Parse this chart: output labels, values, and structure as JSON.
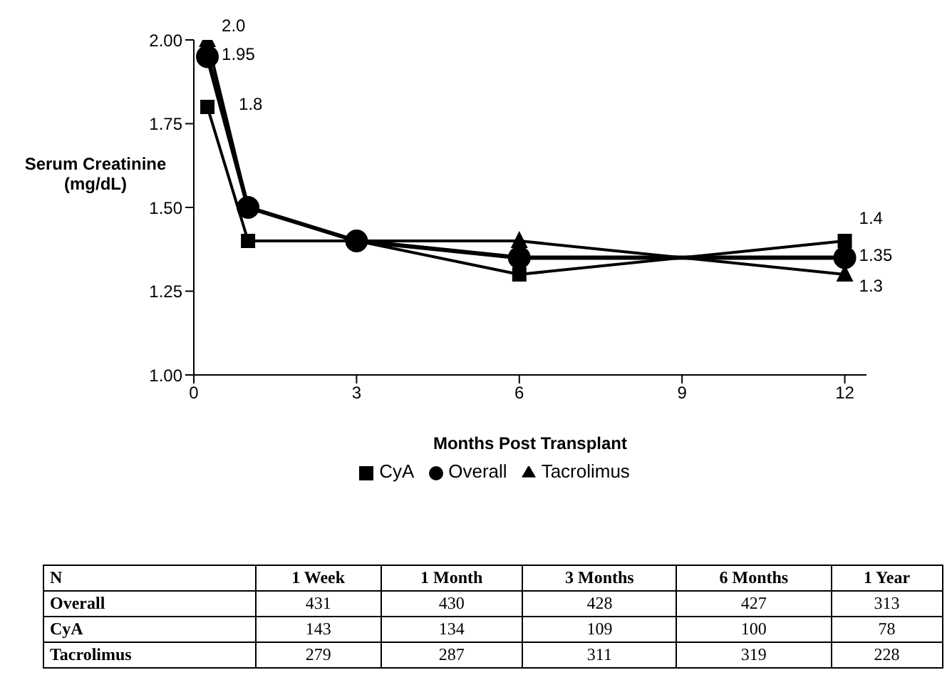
{
  "chart_data": {
    "type": "line",
    "ylabel": "Serum Creatinine (mg/dL)",
    "xlabel": "Months Post Transplant",
    "x": [
      0.25,
      1,
      3,
      6,
      12
    ],
    "series": [
      {
        "name": "Overall",
        "color": "#000000",
        "marker": "circle",
        "values": [
          1.95,
          1.5,
          1.4,
          1.35,
          1.35
        ],
        "value_labels": [
          "1.95",
          null,
          null,
          null,
          "1.35"
        ]
      },
      {
        "name": "CyA",
        "color": "#000000",
        "marker": "square",
        "values": [
          1.8,
          1.4,
          1.4,
          1.3,
          1.4
        ],
        "value_labels": [
          "1.8",
          null,
          null,
          null,
          "1.4"
        ]
      },
      {
        "name": "Tacrolimus",
        "color": "#000000",
        "marker": "triangle",
        "values": [
          2.0,
          1.5,
          1.4,
          1.4,
          1.3
        ],
        "value_labels": [
          "2.0",
          null,
          null,
          null,
          "1.3"
        ]
      }
    ],
    "xlim": [
      0,
      12.4
    ],
    "xticks": [
      0,
      3,
      6,
      9,
      12
    ],
    "ylim": [
      1,
      2
    ],
    "yticks": [
      {
        "value": 1,
        "label": "1.00"
      },
      {
        "value": 1.25,
        "label": "1.25"
      },
      {
        "value": 1.5,
        "label": "1.50"
      },
      {
        "value": 1.75,
        "label": "1.75"
      },
      {
        "value": 2,
        "label": "2.00"
      }
    ],
    "grid": false,
    "legend": "bottom",
    "annotations": [
      "N",
      "1 Week",
      "1 Month",
      "3 Months",
      "6 Months",
      "1 Year",
      "Overall",
      "431",
      "430",
      "428",
      "427",
      "313",
      "CyA",
      "143",
      "134",
      "109",
      "100",
      "78",
      "Tacrolimus",
      "279",
      "287",
      "311",
      "319",
      "228"
    ]
  }
}
